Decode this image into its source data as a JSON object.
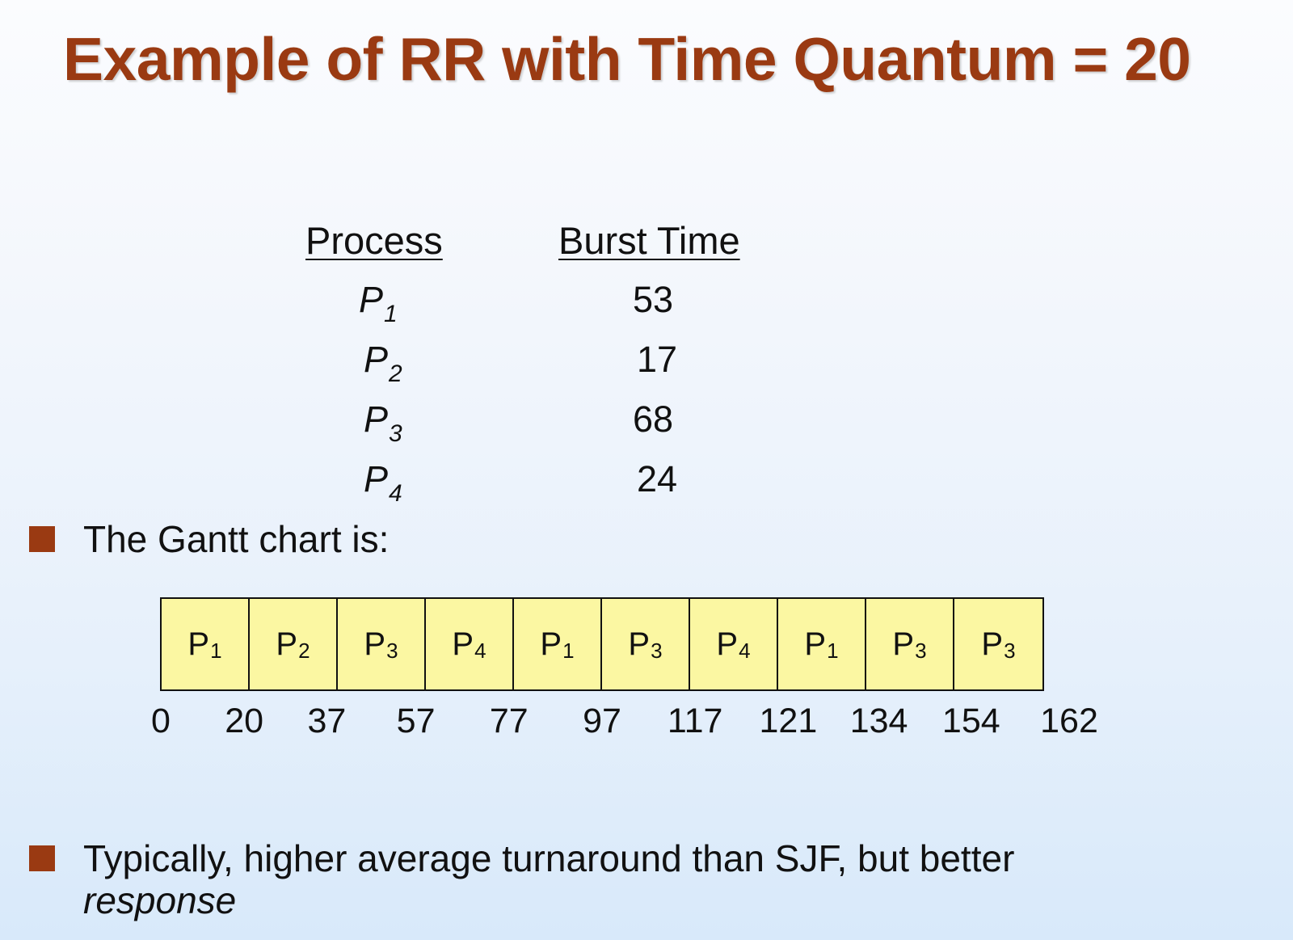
{
  "slide": {
    "title": "Example of RR with Time Quantum = 20"
  },
  "process_table": {
    "headers": {
      "process": "Process",
      "burst_time": "Burst Time"
    },
    "rows": [
      {
        "name": "P",
        "sub": "1",
        "burst": "53"
      },
      {
        "name": "P",
        "sub": "2",
        "burst": "17"
      },
      {
        "name": "P",
        "sub": "3",
        "burst": "68"
      },
      {
        "name": "P",
        "sub": "4",
        "burst": "24"
      }
    ]
  },
  "bullets": {
    "gantt_intro": "The Gantt chart is:",
    "summary_main": "Typically, higher average turnaround than SJF, but better",
    "summary_italic": "response"
  },
  "colors": {
    "title": "#9a3a12",
    "bullet": "#9a3a12",
    "gantt_fill": "#fbf7a2"
  },
  "chart_data": {
    "type": "gantt",
    "segments": [
      {
        "label": "P",
        "sub": "1",
        "start": 0,
        "end": 20
      },
      {
        "label": "P",
        "sub": "2",
        "start": 20,
        "end": 37
      },
      {
        "label": "P",
        "sub": "3",
        "start": 37,
        "end": 57
      },
      {
        "label": "P",
        "sub": "4",
        "start": 57,
        "end": 77
      },
      {
        "label": "P",
        "sub": "1",
        "start": 77,
        "end": 97
      },
      {
        "label": "P",
        "sub": "3",
        "start": 97,
        "end": 117
      },
      {
        "label": "P",
        "sub": "4",
        "start": 117,
        "end": 121
      },
      {
        "label": "P",
        "sub": "1",
        "start": 121,
        "end": 134
      },
      {
        "label": "P",
        "sub": "3",
        "start": 134,
        "end": 154
      },
      {
        "label": "P",
        "sub": "3",
        "start": 154,
        "end": 162
      }
    ],
    "tick_labels": [
      "0",
      "20",
      "37",
      "57",
      "77",
      "97",
      "117",
      "121",
      "134",
      "154",
      "162"
    ]
  }
}
